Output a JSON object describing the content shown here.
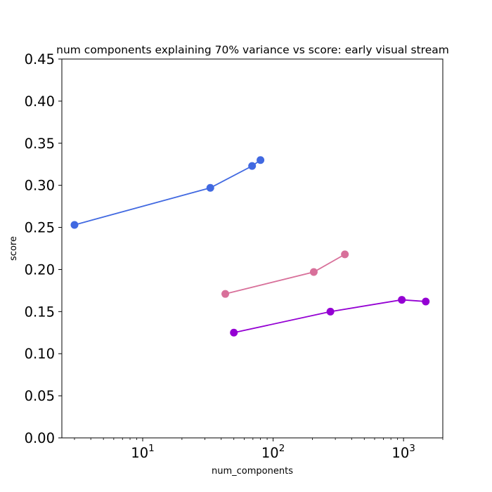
{
  "chart_data": {
    "type": "line",
    "title": "num components explaining 70% variance vs score: early visual stream",
    "xlabel": "num_components",
    "ylabel": "score",
    "xscale": "log",
    "xlim": [
      2.4,
      2000
    ],
    "ylim": [
      0.0,
      0.45
    ],
    "grid": false,
    "legend": "none",
    "yticks": [
      {
        "value": 0.0,
        "label": "0.00"
      },
      {
        "value": 0.05,
        "label": "0.05"
      },
      {
        "value": 0.1,
        "label": "0.10"
      },
      {
        "value": 0.15,
        "label": "0.15"
      },
      {
        "value": 0.2,
        "label": "0.20"
      },
      {
        "value": 0.25,
        "label": "0.25"
      },
      {
        "value": 0.3,
        "label": "0.30"
      },
      {
        "value": 0.35,
        "label": "0.35"
      },
      {
        "value": 0.4,
        "label": "0.40"
      },
      {
        "value": 0.45,
        "label": "0.45"
      }
    ],
    "xticks": [
      {
        "value": 10,
        "base": "10",
        "exp": "1"
      },
      {
        "value": 100,
        "base": "10",
        "exp": "2"
      },
      {
        "value": 1000,
        "base": "10",
        "exp": "3"
      }
    ],
    "series": [
      {
        "color": "#4169e1",
        "points": [
          {
            "x": 3,
            "y": 0.253
          },
          {
            "x": 33,
            "y": 0.297
          },
          {
            "x": 69,
            "y": 0.323
          },
          {
            "x": 80,
            "y": 0.33
          }
        ]
      },
      {
        "color": "#d8709a",
        "points": [
          {
            "x": 43,
            "y": 0.171
          },
          {
            "x": 205,
            "y": 0.197
          },
          {
            "x": 355,
            "y": 0.218
          }
        ]
      },
      {
        "color": "#9400d3",
        "points": [
          {
            "x": 50,
            "y": 0.125
          },
          {
            "x": 275,
            "y": 0.15
          },
          {
            "x": 970,
            "y": 0.164
          },
          {
            "x": 1480,
            "y": 0.162
          }
        ]
      }
    ]
  }
}
